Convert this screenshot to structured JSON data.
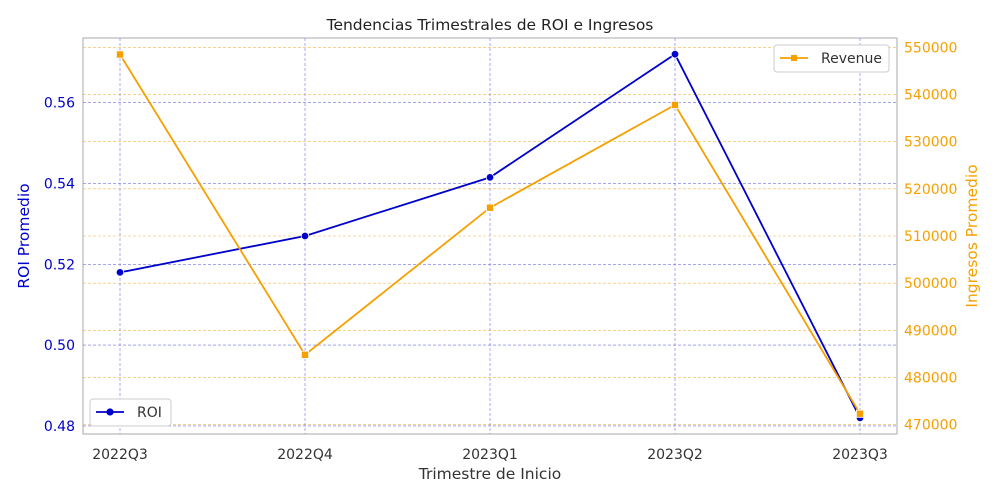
{
  "chart_data": {
    "type": "line",
    "title": "Tendencias Trimestrales de ROI e Ingresos",
    "xlabel": "Trimestre de Inicio",
    "ylabel_left": "ROI Promedio",
    "ylabel_right": "Ingresos Promedio",
    "categories": [
      "2022Q3",
      "2022Q4",
      "2023Q1",
      "2023Q2",
      "2023Q3"
    ],
    "ylim_left": [
      0.478,
      0.576
    ],
    "ylim_right": [
      468000,
      552000
    ],
    "yticks_left": [
      "0.48",
      "0.50",
      "0.52",
      "0.54",
      "0.56"
    ],
    "yticks_right": [
      "470000",
      "480000",
      "490000",
      "500000",
      "510000",
      "520000",
      "530000",
      "540000",
      "550000"
    ],
    "grid": true,
    "series": [
      {
        "name": "ROI",
        "axis": "left",
        "color": "#0000cc",
        "marker": "circle",
        "values": [
          0.518,
          0.527,
          0.5415,
          0.572,
          0.482
        ],
        "legend_position": "lower-left"
      },
      {
        "name": "Revenue",
        "axis": "right",
        "color": "#f5a000",
        "marker": "square",
        "values": [
          548500,
          484800,
          516000,
          537800,
          472300
        ],
        "legend_position": "upper-right"
      }
    ]
  }
}
